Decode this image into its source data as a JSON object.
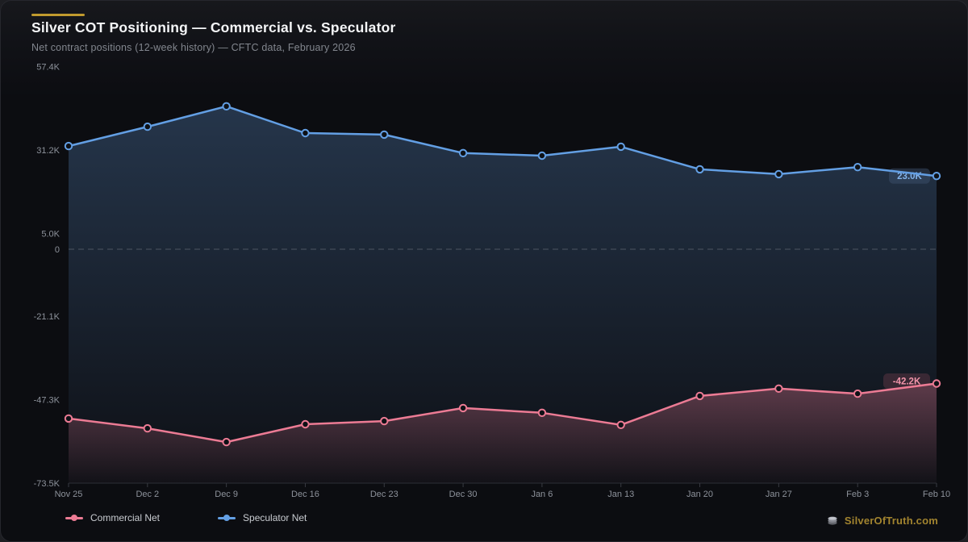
{
  "header": {
    "title": "Silver COT Positioning — Commercial vs. Speculator",
    "subtitle": "Net contract positions (12-week history) — CFTC data, February 2026"
  },
  "watermark": {
    "icon": "coin-stack-icon",
    "label": "SilverOfTruth.com"
  },
  "colors": {
    "accent_gold": "#c09a2e",
    "commercial_pink": "#ec7b94",
    "speculator_blue": "#639fe4",
    "card_bg": "#0c0d11",
    "outer_bg": "#1d1e22",
    "axis_text": "#8d929b",
    "zero_line": "#7d838e",
    "axis_line": "#2c2f36",
    "blue_badge_text": "#82b2ea",
    "pink_badge_text": "#f295aa"
  },
  "legend": [
    {
      "label": "Commercial Net",
      "color": "#ec7b94"
    },
    {
      "label": "Speculator Net",
      "color": "#639fe4"
    }
  ],
  "chart_data": {
    "type": "line",
    "title": "Silver COT Positioning — Commercial vs. Speculator",
    "subtitle": "Net contract positions (12-week history) — CFTC data, February 2026",
    "unit": "thousand contracts (K)",
    "categories": [
      "Nov 25",
      "Dec 2",
      "Dec 9",
      "Dec 16",
      "Dec 23",
      "Dec 30",
      "Jan 6",
      "Jan 13",
      "Jan 20",
      "Jan 27",
      "Feb 3",
      "Feb 10"
    ],
    "series": [
      {
        "name": "Commercial Net",
        "color": "#ec7b94",
        "values": [
          -53.2,
          -56.3,
          -60.6,
          -55.0,
          -54.0,
          -49.9,
          -51.4,
          -55.2,
          -46.1,
          -43.8,
          -45.4,
          -42.2
        ],
        "end_label": "-42.2K",
        "badge_dy": -3,
        "badge_fill": "#5d3644",
        "badge_text_color": "#f295aa"
      },
      {
        "name": "Speculator Net",
        "color": "#639fe4",
        "values": [
          32.4,
          38.5,
          44.9,
          36.5,
          36.0,
          30.2,
          29.4,
          32.2,
          25.1,
          23.6,
          25.8,
          23.0
        ],
        "end_label": "23.0K",
        "badge_dy": 0,
        "badge_fill": "#3b4f6b",
        "badge_text_color": "#82b2ea"
      }
    ],
    "y_ticks": [
      {
        "value": 57.4,
        "label": "57.4K"
      },
      {
        "value": 31.2,
        "label": "31.2K"
      },
      {
        "value": 5.0,
        "label": "5.0K"
      },
      {
        "value": 0,
        "label": "0"
      },
      {
        "value": -21.1,
        "label": "-21.1K"
      },
      {
        "value": -47.3,
        "label": "-47.3K"
      },
      {
        "value": -73.5,
        "label": "-73.5K"
      }
    ],
    "ylim": [
      -73.5,
      57.4
    ],
    "zero_line_dashed": true,
    "grid": false,
    "legend_position": "bottom-left",
    "area_fill": true
  }
}
